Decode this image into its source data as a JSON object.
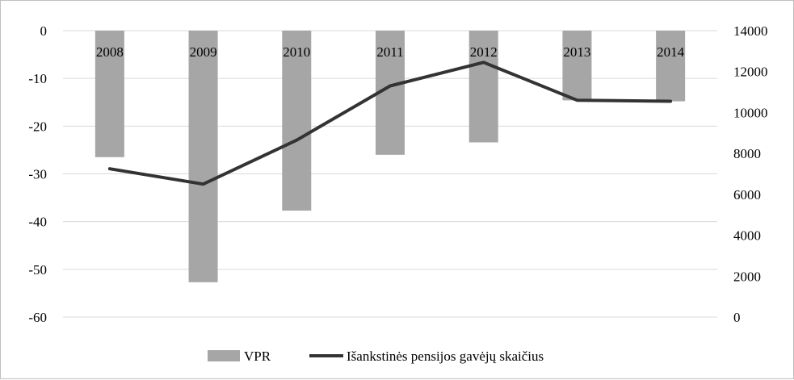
{
  "chart_data": {
    "type": "bar",
    "categories": [
      "2008",
      "2009",
      "2010",
      "2011",
      "2012",
      "2013",
      "2014"
    ],
    "series": [
      {
        "name": "VPR",
        "type": "bar",
        "axis": "left",
        "color": "#a6a6a6",
        "values": [
          -26.5,
          -52.7,
          -37.7,
          -26.0,
          -23.4,
          -14.6,
          -14.8
        ]
      },
      {
        "name": "Išankstinės pensijos gavėjų skaičius",
        "type": "line",
        "axis": "right",
        "color": "#333333",
        "values": [
          7250,
          6500,
          8650,
          11300,
          12450,
          10600,
          10550
        ]
      }
    ],
    "y_left": {
      "min": -60,
      "max": 0,
      "ticks": [
        0,
        -10,
        -20,
        -30,
        -40,
        -50,
        -60
      ]
    },
    "y_right": {
      "min": 0,
      "max": 14000,
      "ticks": [
        14000,
        12000,
        10000,
        8000,
        6000,
        4000,
        2000,
        0
      ]
    },
    "grid": true,
    "legend_position": "bottom",
    "title": "",
    "xlabel": "",
    "ylabel": ""
  }
}
